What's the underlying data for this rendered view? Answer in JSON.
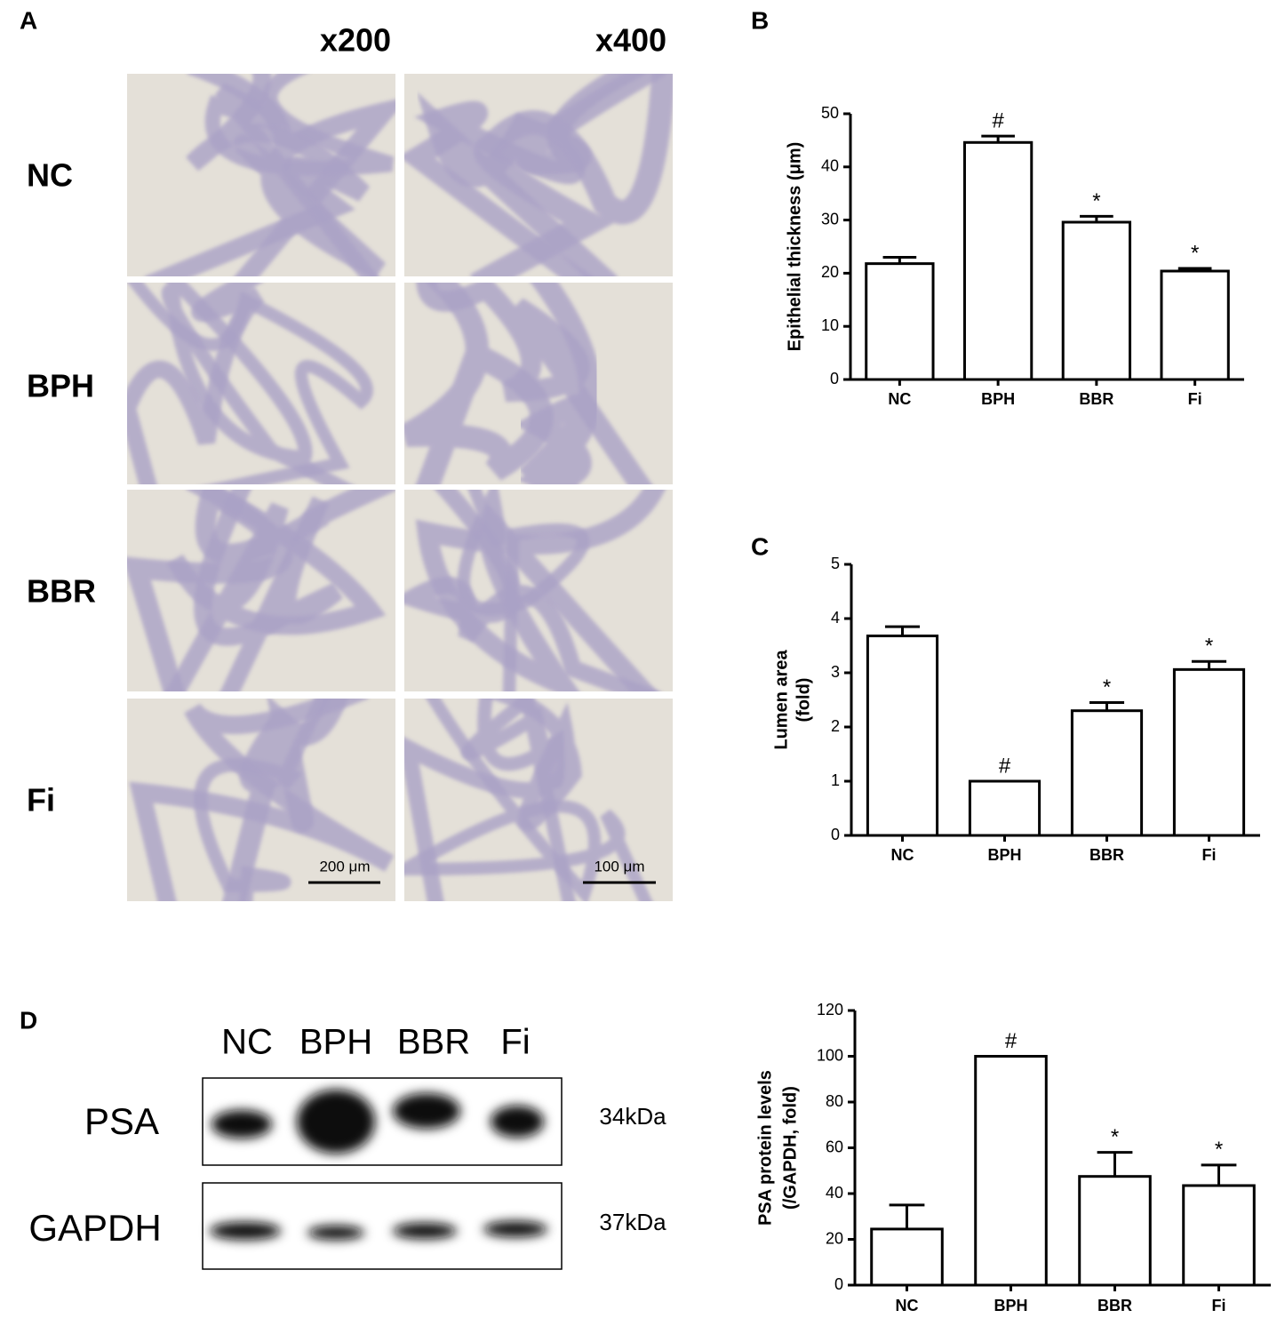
{
  "figure": {
    "panel_labels": [
      "A",
      "B",
      "C",
      "D"
    ],
    "panel_a": {
      "magnifications": [
        "x200",
        "x400"
      ],
      "groups": [
        "NC",
        "BPH",
        "BBR",
        "Fi"
      ],
      "scale_bars": [
        "200 μm",
        "100 μm"
      ]
    },
    "panel_d": {
      "lanes": [
        "NC",
        "BPH",
        "BBR",
        "Fi"
      ],
      "proteins": [
        {
          "name": "PSA",
          "size": "34kDa"
        },
        {
          "name": "GAPDH",
          "size": "37kDa"
        }
      ]
    }
  },
  "chart_data": [
    {
      "type": "bar",
      "ylabel": [
        "Epithelial thickness (μm)"
      ],
      "categories": [
        "NC",
        "BPH",
        "BBR",
        "Fi"
      ],
      "values": [
        21.8,
        44.6,
        29.6,
        20.4
      ],
      "errors": [
        1.2,
        1.2,
        1.1,
        0.5
      ],
      "annotations": [
        null,
        "#",
        "*",
        "*"
      ],
      "color": "#ffffff",
      "ylim": [
        0,
        50
      ],
      "yticks": [
        0,
        10,
        20,
        30,
        40,
        50
      ]
    },
    {
      "type": "bar",
      "ylabel": [
        "Lumen area",
        "(fold)"
      ],
      "categories": [
        "NC",
        "BPH",
        "BBR",
        "Fi"
      ],
      "values": [
        3.68,
        1.0,
        2.3,
        3.06
      ],
      "errors": [
        0.17,
        0,
        0.15,
        0.15
      ],
      "annotations": [
        null,
        "#",
        "*",
        "*"
      ],
      "color": "#ffffff",
      "ylim": [
        0,
        5
      ],
      "yticks": [
        0,
        1,
        2,
        3,
        4,
        5
      ]
    },
    {
      "type": "bar",
      "ylabel": [
        "PSA protein levels",
        "(/GAPDH, fold)"
      ],
      "categories": [
        "NC",
        "BPH",
        "BBR",
        "Fi"
      ],
      "values": [
        24.5,
        100,
        47.5,
        43.5
      ],
      "errors": [
        10.5,
        0,
        10.5,
        9
      ],
      "annotations": [
        null,
        "#",
        "*",
        "*"
      ],
      "color": "#ffffff",
      "ylim": [
        0,
        120
      ],
      "yticks": [
        0,
        20,
        40,
        60,
        80,
        100,
        120
      ]
    }
  ]
}
